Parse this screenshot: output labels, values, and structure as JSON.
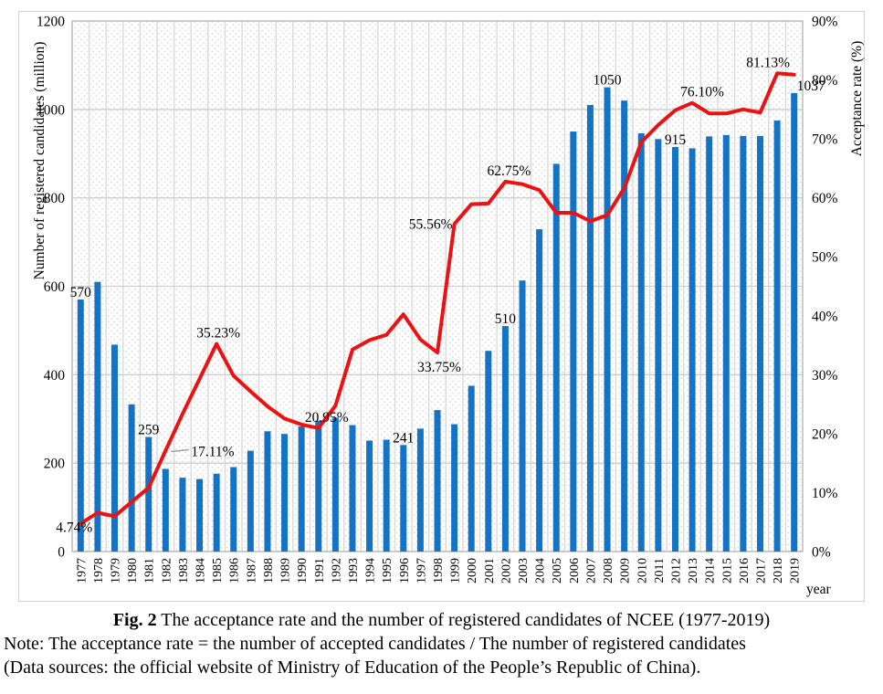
{
  "figure": {
    "caption_fig": "Fig. 2",
    "caption_title": " The acceptance rate and the number of registered candidates of NCEE (1977-2019)",
    "note_line": "Note: The acceptance rate = the number of accepted candidates / The number of registered candidates",
    "source_line": "(Data sources: the official website of Ministry of Education of the People’s Republic of China)."
  },
  "chart_data": {
    "type": "bar",
    "combo": "bar+line",
    "x": [
      1977,
      1978,
      1979,
      1980,
      1981,
      1982,
      1983,
      1984,
      1985,
      1986,
      1987,
      1988,
      1989,
      1990,
      1991,
      1992,
      1993,
      1994,
      1995,
      1996,
      1997,
      1998,
      1999,
      2000,
      2001,
      2002,
      2003,
      2004,
      2005,
      2006,
      2007,
      2008,
      2009,
      2010,
      2011,
      2012,
      2013,
      2014,
      2015,
      2016,
      2017,
      2018,
      2019
    ],
    "series": [
      {
        "name": "Number of registered candidates",
        "type": "bar",
        "axis": "left",
        "color": "#1473C4",
        "values": [
          570,
          610,
          468,
          333,
          259,
          187,
          167,
          164,
          176,
          191,
          228,
          272,
          266,
          283,
          296,
          303,
          286,
          251,
          253,
          241,
          278,
          320,
          288,
          375,
          454,
          510,
          613,
          729,
          877,
          950,
          1010,
          1050,
          1020,
          946,
          933,
          915,
          912,
          939,
          942,
          940,
          940,
          975,
          1037
        ]
      },
      {
        "name": "Acceptance rate",
        "type": "line",
        "axis": "right",
        "color": "#EE1111",
        "values": [
          4.74,
          6.59,
          5.98,
          8.41,
          10.81,
          17.11,
          23.35,
          29.27,
          35.23,
          29.84,
          27.19,
          24.63,
          22.56,
          21.55,
          20.95,
          24.75,
          34.27,
          35.86,
          36.76,
          40.25,
          35.97,
          33.75,
          55.56,
          58.93,
          59.03,
          62.75,
          62.32,
          61.32,
          57.47,
          57.47,
          56.04,
          57.05,
          61.67,
          69.45,
          72.35,
          74.86,
          76.1,
          74.33,
          74.31,
          75.0,
          74.47,
          81.13,
          80.9
        ]
      }
    ],
    "bar_labels": [
      {
        "year": 1977,
        "text": "570"
      },
      {
        "year": 1981,
        "text": "259"
      },
      {
        "year": 1996,
        "text": "241"
      },
      {
        "year": 2002,
        "text": "510"
      },
      {
        "year": 2008,
        "text": "1050"
      },
      {
        "year": 2012,
        "text": "915"
      },
      {
        "year": 2019,
        "text": "1037"
      }
    ],
    "rate_labels": [
      {
        "year": 1977,
        "text": "4.74%"
      },
      {
        "year": 1982,
        "text": "17.11%"
      },
      {
        "year": 1985,
        "text": "35.23%"
      },
      {
        "year": 1991,
        "text": "20.95%"
      },
      {
        "year": 1998,
        "text": "33.75%"
      },
      {
        "year": 1999,
        "text": "55.56%"
      },
      {
        "year": 2002,
        "text": "62.75%"
      },
      {
        "year": 2013,
        "text": "76.10%"
      },
      {
        "year": 2018,
        "text": "81.13%"
      }
    ],
    "left_axis": {
      "title": "Number of registered candidates (million)",
      "min": 0,
      "max": 1200,
      "step": 200,
      "ticks": [
        "0",
        "200",
        "400",
        "600",
        "800",
        "1000",
        "1200"
      ]
    },
    "right_axis": {
      "title": "Acceptance rate (%)",
      "min": 0,
      "max": 90,
      "step": 10,
      "ticks": [
        "0%",
        "10%",
        "20%",
        "30%",
        "40%",
        "50%",
        "60%",
        "70%",
        "80%",
        "90%"
      ]
    },
    "x_axis": {
      "unit_label": "year",
      "labels": [
        "1977",
        "1978",
        "1979",
        "1980",
        "1981",
        "1982",
        "1983",
        "1984",
        "1985",
        "1986",
        "1987",
        "1988",
        "1989",
        "1990",
        "1991",
        "1992",
        "1993",
        "1994",
        "1995",
        "1996",
        "1997",
        "1998",
        "1999",
        "2000",
        "2001",
        "2002",
        "2003",
        "2004",
        "2005",
        "2006",
        "2007",
        "2008",
        "2009",
        "2010",
        "2011",
        "2012",
        "2013",
        "2014",
        "2015",
        "2016",
        "2017",
        "2018",
        "2019"
      ]
    },
    "grid": true,
    "legend": "none",
    "plot_background": "diagonal-dot-hatch"
  }
}
